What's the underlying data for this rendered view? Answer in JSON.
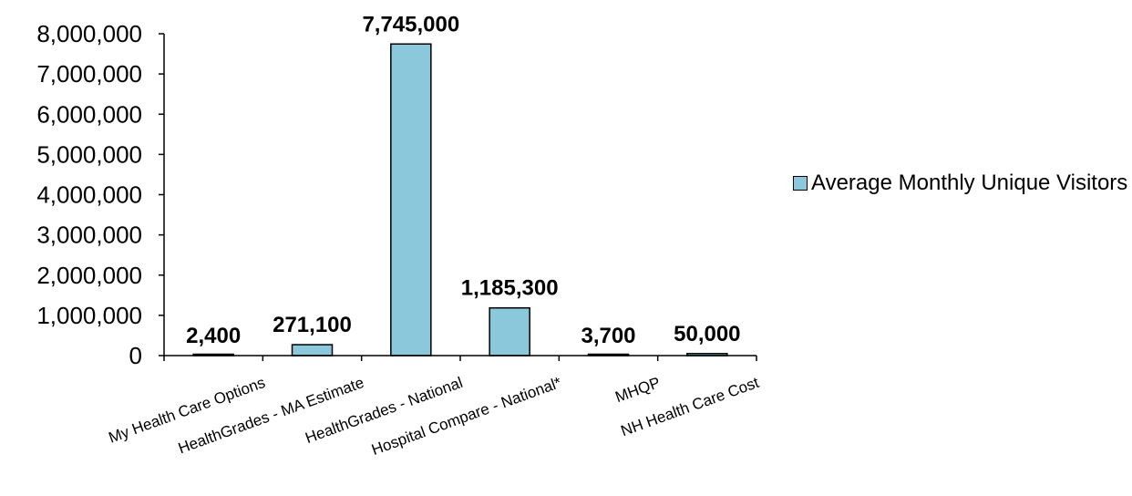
{
  "chart_data": {
    "type": "bar",
    "categories": [
      "My Health Care Options",
      "HealthGrades - MA Estimate",
      "HealthGrades - National",
      "Hospital Compare - National*",
      "MHQP",
      "NH Health Care Cost"
    ],
    "series": [
      {
        "name": "Average Monthly Unique Visitors",
        "values": [
          2400,
          271100,
          7745000,
          1185300,
          3700,
          50000
        ],
        "color": "#8CC8DB"
      }
    ],
    "data_labels": [
      "2,400",
      "271,100",
      "7,745,000",
      "1,185,300",
      "3,700",
      "50,000"
    ],
    "y_ticks": [
      "0",
      "1,000,000",
      "2,000,000",
      "3,000,000",
      "4,000,000",
      "5,000,000",
      "6,000,000",
      "7,000,000",
      "8,000,000"
    ],
    "ylim": [
      0,
      8000000
    ],
    "grid": false,
    "legend_position": "right"
  }
}
